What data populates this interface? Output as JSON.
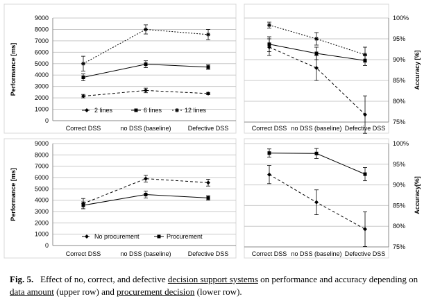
{
  "chart_data": [
    {
      "type": "line",
      "ylabel": "Performance [ms]",
      "categories": [
        "Correct DSS",
        "no DSS (baseline)",
        "Defective DSS"
      ],
      "ylim": [
        0,
        9000
      ],
      "yticks": [
        "0",
        "1000",
        "2000",
        "3000",
        "4000",
        "5000",
        "6000",
        "7000",
        "8000",
        "9000"
      ],
      "grid": true,
      "legend_position": "bottom",
      "series": [
        {
          "name": "2 lines",
          "values": [
            2150,
            2650,
            2380
          ],
          "errors": [
            150,
            200,
            100
          ],
          "style": "dashed",
          "marker": "diamond"
        },
        {
          "name": "6 lines",
          "values": [
            3800,
            4950,
            4700
          ],
          "errors": [
            300,
            300,
            200
          ],
          "style": "solid",
          "marker": "square"
        },
        {
          "name": "12 lines",
          "values": [
            5000,
            8000,
            7550
          ],
          "errors": [
            650,
            400,
            450
          ],
          "style": "dotted",
          "marker": "star"
        }
      ]
    },
    {
      "type": "line",
      "ylabel": "Accuracy [%]",
      "categories": [
        "Correct DSS",
        "no DSS (baseline)",
        "Defective DSS"
      ],
      "ylim": [
        75,
        100
      ],
      "yticks": [
        "75%",
        "80%",
        "85%",
        "90%",
        "95%",
        "100%"
      ],
      "grid": true,
      "series": [
        {
          "name": "2 lines",
          "values": [
            93.0,
            88.0,
            76.8
          ],
          "errors": [
            2.0,
            3.0,
            4.5
          ],
          "style": "dashed",
          "marker": "diamond"
        },
        {
          "name": "6 lines",
          "values": [
            93.7,
            91.5,
            89.8
          ],
          "errors": [
            1.8,
            1.5,
            1.2
          ],
          "style": "solid",
          "marker": "square"
        },
        {
          "name": "12 lines",
          "values": [
            98.3,
            95.0,
            91.2
          ],
          "errors": [
            0.7,
            1.5,
            1.8
          ],
          "style": "dotted",
          "marker": "star"
        }
      ]
    },
    {
      "type": "line",
      "ylabel": "Performance [ms]",
      "categories": [
        "Correct DSS",
        "no DSS (baseline)",
        "Defective DSS"
      ],
      "ylim": [
        0,
        9000
      ],
      "yticks": [
        "0",
        "1000",
        "2000",
        "3000",
        "4000",
        "5000",
        "6000",
        "7000",
        "8000",
        "9000"
      ],
      "grid": true,
      "legend_position": "bottom",
      "series": [
        {
          "name": "No procurement",
          "values": [
            3700,
            5900,
            5550
          ],
          "errors": [
            450,
            300,
            300
          ],
          "style": "dashed",
          "marker": "diamond"
        },
        {
          "name": "Procurement",
          "values": [
            3550,
            4500,
            4200
          ],
          "errors": [
            300,
            300,
            200
          ],
          "style": "solid",
          "marker": "square"
        }
      ]
    },
    {
      "type": "line",
      "ylabel": "Accuracy[%]",
      "categories": [
        "Correct DSS",
        "no DSS (baseline)",
        "Defective DSS"
      ],
      "ylim": [
        75,
        100
      ],
      "yticks": [
        "75%",
        "80%",
        "85%",
        "90%",
        "95%",
        "100%"
      ],
      "grid": true,
      "series": [
        {
          "name": "No procurement",
          "values": [
            92.5,
            85.8,
            79.3
          ],
          "errors": [
            2.2,
            3.0,
            4.2
          ],
          "style": "dashed",
          "marker": "diamond"
        },
        {
          "name": "Procurement",
          "values": [
            97.7,
            97.6,
            92.6
          ],
          "errors": [
            1.0,
            1.2,
            1.6
          ],
          "style": "solid",
          "marker": "square"
        }
      ]
    }
  ],
  "caption": {
    "fig_label": "Fig. 5.",
    "part1": "Effect of no, correct, and defective ",
    "link1": "decision support systems",
    "part2": " on performance and accuracy depending on ",
    "link2": "data amount",
    "part3": " (upper row) and ",
    "link3": "procurement decision",
    "part4": " (lower row)."
  }
}
